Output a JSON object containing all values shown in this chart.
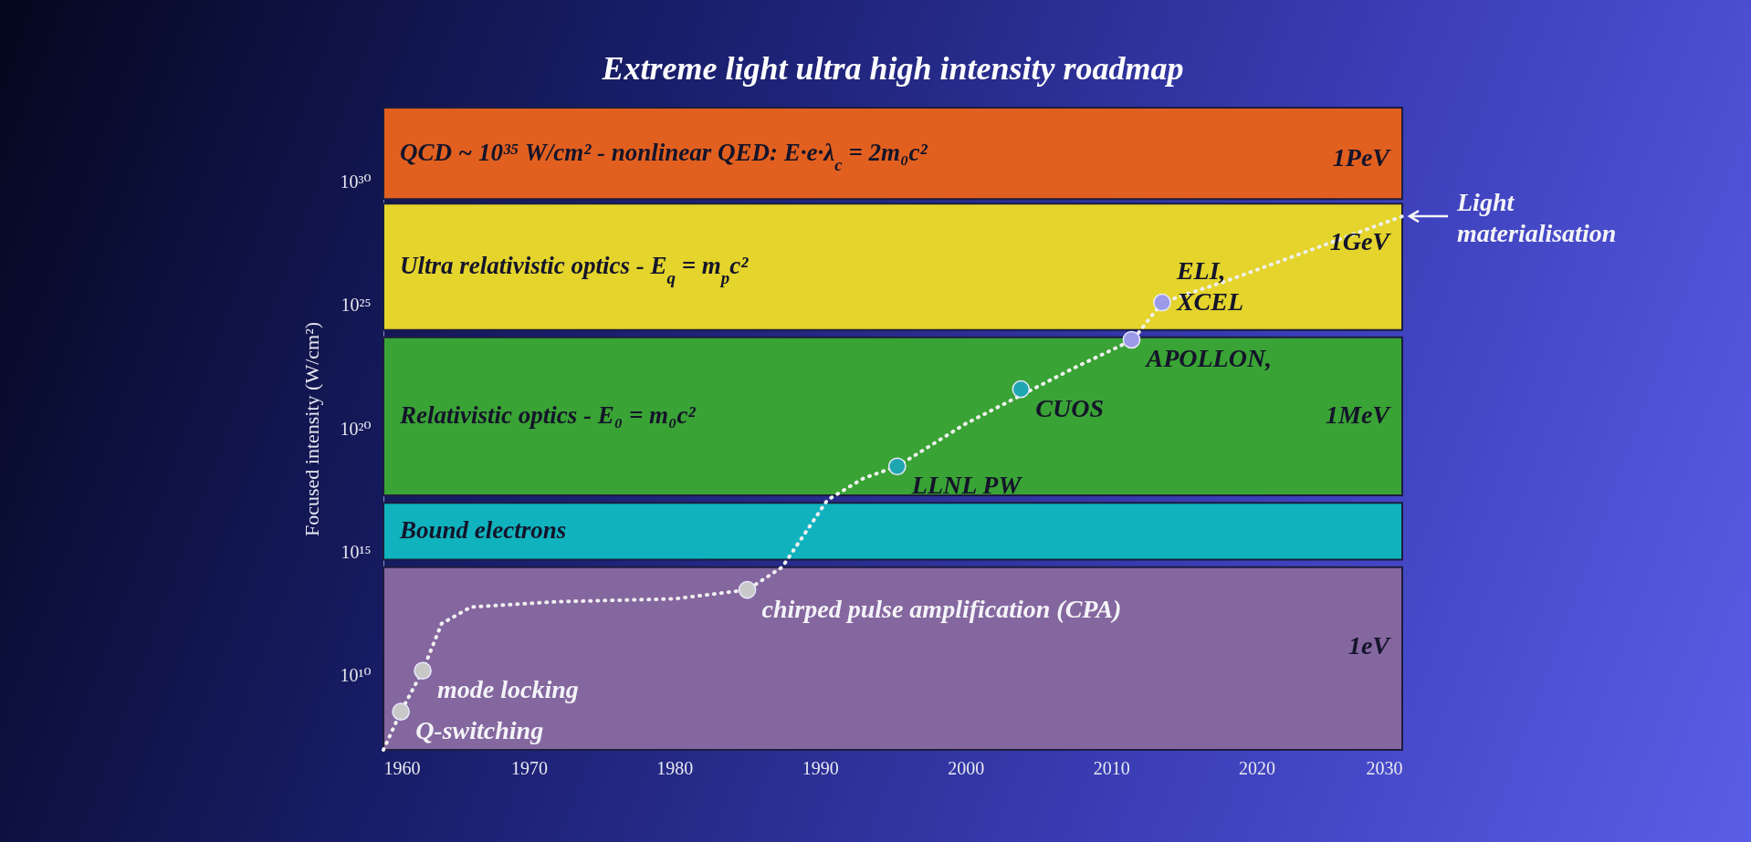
{
  "chart_data": {
    "type": "line",
    "title": "Extreme light ultra high intensity roadmap",
    "ylabel": "Focused intensity (W/cm²)",
    "log": true,
    "grid": false,
    "xlim": [
      1960,
      2030
    ],
    "xticks": [
      1960,
      1970,
      1980,
      1990,
      2000,
      2010,
      2020,
      2030
    ],
    "ylim": [
      10000000.0,
      1e+33
    ],
    "yticks": [
      {
        "value": 10000000000.0,
        "label": "10¹⁰"
      },
      {
        "value": 1000000000000000.0,
        "label": "10¹⁵"
      },
      {
        "value": 1e+20,
        "label": "10²⁰"
      },
      {
        "value": 1e+25,
        "label": "10²⁵"
      },
      {
        "value": 1e+30,
        "label": "10³⁰"
      }
    ],
    "bands": [
      {
        "axis": "y",
        "from": 2e+29,
        "to": 1e+33,
        "label": "QCD ~ 10³⁵ W/cm² - nonlinear QED: E·e·λ$_{c}$ = 2m₀c²",
        "color": "#e2601f"
      },
      {
        "axis": "y",
        "from": 1e+24,
        "to": 1.3e+29,
        "label": "Ultra relativistic optics - E$_{q}$ = m$_{p}$c²",
        "color": "#e4d42c"
      },
      {
        "axis": "y",
        "from": 2e+17,
        "to": 5e+23,
        "label": "Relativistic optics - E₀ = m₀c²",
        "color": "#3aa335"
      },
      {
        "axis": "y",
        "from": 500000000000000.0,
        "to": 1e+17,
        "label": "Bound electrons",
        "color": "#10b3bd"
      },
      {
        "axis": "y",
        "from": 10000000.0,
        "to": 250000000000000.0,
        "color": "#85679f"
      }
    ],
    "series": [
      {
        "type": "line",
        "color": "#f0f0f0",
        "line_style": "dotted",
        "marker": "none",
        "x": [
          1960,
          1961.2,
          1962.7,
          1964,
          1966,
          1972,
          1980,
          1985,
          1987.4,
          1990.5,
          1993,
          1995.3,
          2000,
          2007.5,
          2011.5,
          2013.5,
          2018,
          2030
        ],
        "values": [
          10000000.0,
          350000000.0,
          16000000000.0,
          1300000000000.0,
          6000000000000.0,
          10000000000000.0,
          13000000000000.0,
          30000000000000.0,
          250000000000000.0,
          1.3e+17,
          1e+18,
          3e+18,
          1.6e+20,
          3e+22,
          4e+23,
          1.3e+25,
          1e+26,
          4e+28
        ]
      },
      {
        "type": "scatter",
        "marker": "circle",
        "colors": [
          "#c8c8c8",
          "#c8c8c8",
          "#c8c8c8",
          "#1fa6b0",
          "#1fa6b0",
          "#9a9ae8",
          "#9a9ae8"
        ],
        "x": [
          1961.2,
          1962.7,
          1985,
          1995.3,
          2003.8,
          2011.4,
          2013.5
        ],
        "values": [
          350000000.0,
          16000000000.0,
          30000000000000.0,
          3e+18,
          4e+21,
          4e+23,
          1.3e+25
        ]
      }
    ],
    "annotations": [
      {
        "text": "Q-switching",
        "x": 1961.2,
        "y": 350000000.0
      },
      {
        "text": "mode locking",
        "x": 1962.7,
        "y": 16000000000.0
      },
      {
        "text": "chirped pulse amplification (CPA)",
        "x": 1985,
        "y": 30000000000000.0
      },
      {
        "text": "LLNL PW",
        "x": 1995.3,
        "y": 3e+18
      },
      {
        "text": "CUOS",
        "x": 2003.8,
        "y": 4e+21
      },
      {
        "text": "APOLLON,",
        "x": 2011.4,
        "y": 4e+23
      },
      {
        "text": "ELI,\nXCEL",
        "x": 2013.5,
        "y": 1.3e+25
      },
      {
        "text": "Light materialisation",
        "x": 2030,
        "y": 4e+28
      },
      "1PeV",
      "1GeV",
      "1MeV",
      "1eV"
    ]
  }
}
